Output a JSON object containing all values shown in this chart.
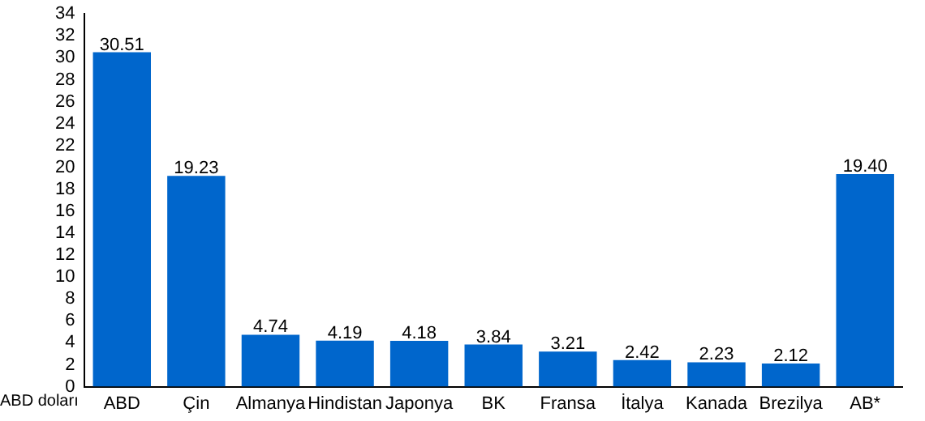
{
  "chart_data": {
    "type": "bar",
    "ylabel": "ABD doları",
    "categories": [
      "ABD",
      "Çin",
      "Almanya",
      "Hindistan",
      "Japonya",
      "BK",
      "Fransa",
      "İtalya",
      "Kanada",
      "Brezilya",
      "AB*"
    ],
    "values": [
      30.51,
      19.23,
      4.74,
      4.19,
      4.18,
      3.84,
      3.21,
      2.42,
      2.23,
      2.12,
      19.4
    ],
    "value_labels": [
      "30.51",
      "19.23",
      "4.74",
      "4.19",
      "4.18",
      "3.84",
      "3.21",
      "2.42",
      "2.23",
      "2.12",
      "19.40"
    ],
    "color": "#0066cc",
    "ylim": [
      0,
      34
    ],
    "yticks": [
      0,
      2,
      4,
      6,
      8,
      10,
      12,
      14,
      16,
      18,
      20,
      22,
      24,
      26,
      28,
      30,
      32,
      34
    ],
    "grid": false,
    "data_labels": true
  }
}
